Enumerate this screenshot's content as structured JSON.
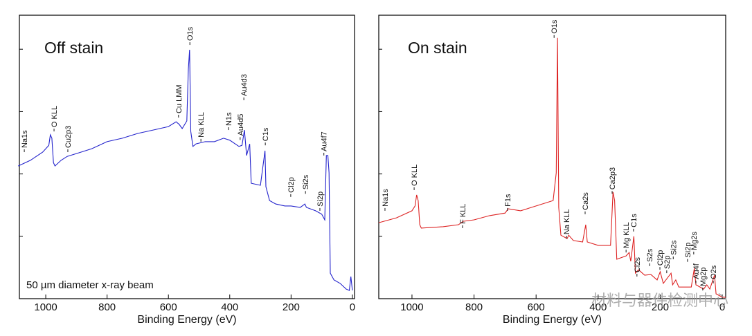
{
  "chart_data": [
    {
      "type": "line",
      "title": "Off stain",
      "note": "50 µm diameter x-ray beam",
      "x_label": "Binding Energy (eV)",
      "xlim": [
        1086,
        -7
      ],
      "xticks": [
        1000,
        800,
        600,
        400,
        200,
        0
      ],
      "ylim": [
        0,
        100
      ],
      "yticks": [
        22,
        44,
        66,
        88
      ],
      "x": [
        1090,
        1050,
        1010,
        990,
        985,
        980,
        975,
        970,
        950,
        930,
        900,
        850,
        800,
        750,
        700,
        650,
        600,
        575,
        565,
        555,
        540,
        535,
        531,
        527,
        520,
        510,
        480,
        450,
        420,
        400,
        370,
        360,
        352,
        345,
        335,
        330,
        300,
        285,
        282,
        270,
        250,
        220,
        200,
        170,
        155,
        150,
        120,
        100,
        90,
        85,
        80,
        76,
        72,
        60,
        40,
        20,
        10,
        5,
        0
      ],
      "series": [
        {
          "color": "#2222cc",
          "values": [
            46.8,
            48.8,
            51.7,
            54.1,
            57.8,
            56.6,
            48.0,
            46.8,
            48.8,
            50.2,
            51.2,
            52.9,
            55.4,
            56.6,
            58.3,
            59.5,
            60.7,
            62.4,
            61.5,
            60.0,
            62.7,
            81.0,
            87.8,
            59.0,
            53.7,
            54.6,
            55.4,
            55.4,
            56.6,
            55.9,
            53.7,
            54.1,
            59.5,
            50.5,
            54.6,
            40.7,
            40.0,
            52.2,
            39.5,
            34.6,
            33.4,
            32.7,
            32.7,
            32.2,
            33.4,
            32.2,
            31.0,
            29.8,
            27.8,
            50.5,
            50.5,
            44.4,
            9.0,
            6.6,
            5.4,
            3.4,
            2.9,
            7.8,
            2.9
          ]
        }
      ],
      "annotations": [
        {
          "text": "Na1s",
          "x": 1070,
          "y": 51.7
        },
        {
          "text": "O KLL",
          "x": 973,
          "y": 59
        },
        {
          "text": "Cu2p3",
          "x": 928,
          "y": 51.7
        },
        {
          "text": "Cu LMM",
          "x": 567,
          "y": 63.9
        },
        {
          "text": "O1s",
          "x": 530,
          "y": 89.5
        },
        {
          "text": "Na KLL",
          "x": 494,
          "y": 55.4
        },
        {
          "text": "N1s",
          "x": 404,
          "y": 59.5
        },
        {
          "text": "Au4d5",
          "x": 366,
          "y": 56
        },
        {
          "text": "Au4d3",
          "x": 354,
          "y": 70
        },
        {
          "text": "C1s",
          "x": 284,
          "y": 54.1
        },
        {
          "text": "Cl2p",
          "x": 201,
          "y": 35.9
        },
        {
          "text": "Si2s",
          "x": 153,
          "y": 37
        },
        {
          "text": "Si2p",
          "x": 106,
          "y": 31
        },
        {
          "text": "Au4f7",
          "x": 93,
          "y": 50.5
        }
      ]
    },
    {
      "type": "line",
      "title": "On stain",
      "x_label": "Binding Energy (eV)",
      "watermark": "材料与器件检测中心",
      "xlim": [
        1107,
        -11
      ],
      "xticks": [
        1000,
        800,
        600,
        400,
        200,
        0
      ],
      "ylim": [
        0,
        100
      ],
      "yticks": [
        22,
        44,
        66,
        88
      ],
      "x": [
        1107,
        1050,
        1000,
        990,
        985,
        980,
        975,
        970,
        900,
        850,
        835,
        800,
        750,
        700,
        690,
        650,
        600,
        545,
        535,
        531,
        527,
        520,
        500,
        495,
        480,
        450,
        440,
        435,
        400,
        360,
        352,
        347,
        340,
        310,
        300,
        295,
        285,
        280,
        270,
        250,
        230,
        210,
        200,
        190,
        165,
        160,
        150,
        140,
        100,
        90,
        85,
        60,
        50,
        40,
        25,
        20,
        0,
        -11
      ],
      "series": [
        {
          "color": "#dd2222",
          "values": [
            26.8,
            28.5,
            31.0,
            32.7,
            36.6,
            34.6,
            26.1,
            24.9,
            25.4,
            26.1,
            27.3,
            27.8,
            29.3,
            30.2,
            31.7,
            31.0,
            32.7,
            34.6,
            44.4,
            92.0,
            32.2,
            22.4,
            21.2,
            22.4,
            20.5,
            20.0,
            26.1,
            20.0,
            18.8,
            18.8,
            37.6,
            34.6,
            13.9,
            15.1,
            16.3,
            13.2,
            22.0,
            9.0,
            10.2,
            8.3,
            8.5,
            6.6,
            9.5,
            5.4,
            9.0,
            4.9,
            6.6,
            4.1,
            4.1,
            10.7,
            4.9,
            3.4,
            4.9,
            3.4,
            8.3,
            1.7,
            0.5,
            0.5
          ]
        }
      ],
      "annotations": [
        {
          "text": "Na1s",
          "x": 1087,
          "y": 31
        },
        {
          "text": "O KLL",
          "x": 993,
          "y": 38.3
        },
        {
          "text": "F KLL",
          "x": 837,
          "y": 24.9
        },
        {
          "text": "F1s",
          "x": 692,
          "y": 31
        },
        {
          "text": "O1s",
          "x": 542,
          "y": 92
        },
        {
          "text": "Na KLL",
          "x": 502,
          "y": 21.2
        },
        {
          "text": "Ca2s",
          "x": 442,
          "y": 29.8
        },
        {
          "text": "Ca2p3",
          "x": 355,
          "y": 37
        },
        {
          "text": "Mg KLL",
          "x": 310,
          "y": 16.3
        },
        {
          "text": "C1s",
          "x": 286,
          "y": 23.7
        },
        {
          "text": "Cl2s",
          "x": 275,
          "y": 7.8
        },
        {
          "text": "S2s",
          "x": 234,
          "y": 11.5
        },
        {
          "text": "Cl2p",
          "x": 201,
          "y": 10.2
        },
        {
          "text": "S2p",
          "x": 179,
          "y": 9
        },
        {
          "text": "Si2s",
          "x": 158,
          "y": 13.9
        },
        {
          "text": "Si2p",
          "x": 112,
          "y": 13
        },
        {
          "text": "Mg2s",
          "x": 92,
          "y": 15.6
        },
        {
          "text": "Au4f",
          "x": 85,
          "y": 5.4
        },
        {
          "text": "Mg2p",
          "x": 63,
          "y": 2.9
        },
        {
          "text": "O2s",
          "x": 29,
          "y": 5.4
        }
      ]
    }
  ]
}
